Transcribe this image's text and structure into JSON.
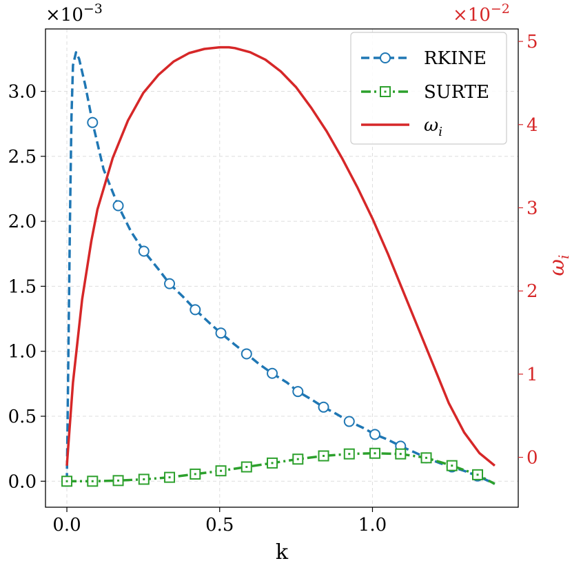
{
  "chart_data": {
    "type": "line",
    "x_label": "k",
    "y_label_right": "ω",
    "y_label_right_sub": "i",
    "y_left_multiplier_base": "×10",
    "y_left_multiplier_exp": "−3",
    "y_right_multiplier_base": "×10",
    "y_right_multiplier_exp": "−2",
    "xlim": [
      -0.07,
      1.477
    ],
    "ylim_left": [
      -0.2,
      3.48
    ],
    "ylim_right": [
      -0.6,
      5.15
    ],
    "x_ticks": [
      0.0,
      0.5,
      1.0
    ],
    "x_tick_labels": [
      "0.0",
      "0.5",
      "1.0"
    ],
    "y_left_ticks": [
      0.0,
      0.5,
      1.0,
      1.5,
      2.0,
      2.5,
      3.0
    ],
    "y_left_tick_labels": [
      "0.0",
      "0.5",
      "1.0",
      "1.5",
      "2.0",
      "2.5",
      "3.0"
    ],
    "y_right_ticks": [
      0,
      1,
      2,
      3,
      4,
      5
    ],
    "y_right_tick_labels": [
      "0",
      "1",
      "2",
      "3",
      "4",
      "5"
    ],
    "grid": true,
    "legend_position": "top-right",
    "colors": {
      "rkine": "#1f77b4",
      "surte": "#2ca02c",
      "omega": "#d62728"
    },
    "series": [
      {
        "name": "RKINE",
        "axis": "left",
        "style": "dashed",
        "marker": "circle",
        "x": [
          0.0,
          0.005,
          0.01,
          0.015,
          0.02,
          0.03,
          0.04,
          0.06,
          0.084,
          0.12,
          0.168,
          0.21,
          0.252,
          0.3,
          0.336,
          0.38,
          0.42,
          0.47,
          0.504,
          0.55,
          0.588,
          0.63,
          0.672,
          0.72,
          0.756,
          0.8,
          0.84,
          0.88,
          0.924,
          0.97,
          1.008,
          1.05,
          1.092,
          1.14,
          1.176,
          1.22,
          1.26,
          1.3,
          1.344,
          1.4
        ],
        "y": [
          0.0,
          1.0,
          2.0,
          2.8,
          3.2,
          3.3,
          3.25,
          3.05,
          2.76,
          2.4,
          2.12,
          1.92,
          1.77,
          1.63,
          1.52,
          1.42,
          1.32,
          1.21,
          1.14,
          1.05,
          0.98,
          0.9,
          0.83,
          0.76,
          0.69,
          0.63,
          0.57,
          0.52,
          0.46,
          0.41,
          0.36,
          0.32,
          0.27,
          0.22,
          0.18,
          0.14,
          0.11,
          0.08,
          0.04,
          -0.02
        ],
        "markers_x": [
          0.0,
          0.084,
          0.168,
          0.252,
          0.336,
          0.42,
          0.504,
          0.588,
          0.672,
          0.756,
          0.84,
          0.924,
          1.008,
          1.092,
          1.176,
          1.26,
          1.344
        ],
        "markers_y": [
          0.0,
          2.76,
          2.12,
          1.77,
          1.52,
          1.32,
          1.14,
          0.98,
          0.83,
          0.69,
          0.57,
          0.46,
          0.36,
          0.27,
          0.18,
          0.11,
          0.04
        ]
      },
      {
        "name": "SURTE",
        "axis": "left",
        "style": "dashdot",
        "marker": "square",
        "x": [
          0.0,
          0.084,
          0.168,
          0.252,
          0.336,
          0.42,
          0.504,
          0.588,
          0.672,
          0.756,
          0.84,
          0.924,
          1.008,
          1.092,
          1.176,
          1.26,
          1.344,
          1.4
        ],
        "y": [
          0.0,
          0.0,
          0.005,
          0.015,
          0.03,
          0.055,
          0.08,
          0.11,
          0.14,
          0.17,
          0.195,
          0.21,
          0.215,
          0.21,
          0.18,
          0.12,
          0.05,
          -0.02
        ],
        "markers_x": [
          0.0,
          0.084,
          0.168,
          0.252,
          0.336,
          0.42,
          0.504,
          0.588,
          0.672,
          0.756,
          0.84,
          0.924,
          1.008,
          1.092,
          1.176,
          1.26,
          1.344
        ],
        "markers_y": [
          0.0,
          0.0,
          0.005,
          0.015,
          0.03,
          0.055,
          0.08,
          0.11,
          0.14,
          0.17,
          0.195,
          0.21,
          0.215,
          0.21,
          0.18,
          0.12,
          0.05
        ]
      },
      {
        "name": "ω",
        "name_sub": "i",
        "axis": "right",
        "style": "solid",
        "marker": "none",
        "x": [
          0.0,
          0.02,
          0.05,
          0.08,
          0.1,
          0.15,
          0.2,
          0.25,
          0.3,
          0.35,
          0.4,
          0.45,
          0.5,
          0.53,
          0.55,
          0.6,
          0.65,
          0.7,
          0.75,
          0.8,
          0.85,
          0.9,
          0.95,
          1.0,
          1.05,
          1.1,
          1.15,
          1.2,
          1.25,
          1.3,
          1.35,
          1.4
        ],
        "y": [
          -0.1,
          0.9,
          1.9,
          2.6,
          2.98,
          3.6,
          4.05,
          4.38,
          4.6,
          4.76,
          4.86,
          4.91,
          4.93,
          4.93,
          4.92,
          4.87,
          4.78,
          4.64,
          4.45,
          4.2,
          3.92,
          3.6,
          3.25,
          2.87,
          2.45,
          2.0,
          1.55,
          1.1,
          0.65,
          0.3,
          0.05,
          -0.1
        ]
      }
    ]
  }
}
